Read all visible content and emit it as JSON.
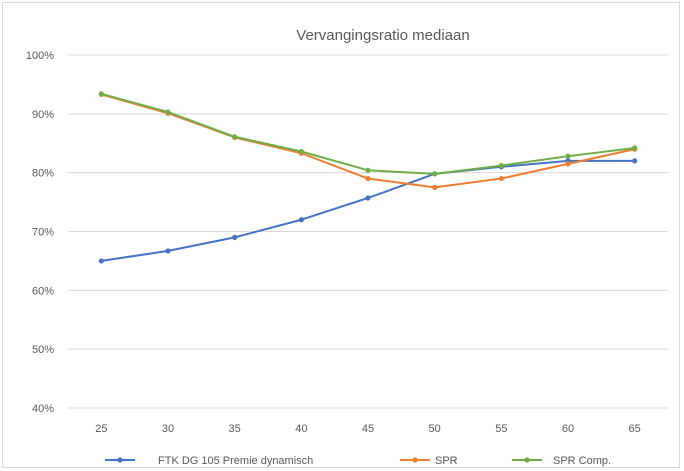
{
  "chart_data": {
    "type": "line",
    "title": "Vervangingsratio mediaan",
    "xlabel": "",
    "ylabel": "",
    "categories": [
      "25",
      "30",
      "35",
      "40",
      "45",
      "50",
      "55",
      "60",
      "65"
    ],
    "y_ticks": [
      "40%",
      "50%",
      "60%",
      "70%",
      "80%",
      "90%",
      "100%"
    ],
    "ylim": [
      40,
      100
    ],
    "grid": true,
    "legend_position": "bottom",
    "series": [
      {
        "name": "FTK DG 105 Premie dynamisch",
        "color": "#4472c4",
        "values": [
          65.0,
          66.7,
          69.0,
          72.0,
          75.7,
          79.8,
          81.0,
          82.0,
          82.0
        ]
      },
      {
        "name": "SPR",
        "color": "#ed7d31",
        "values": [
          93.3,
          90.1,
          86.0,
          83.3,
          79.0,
          77.5,
          79.0,
          81.5,
          84.0
        ]
      },
      {
        "name": "SPR Comp.",
        "color": "#70ad47",
        "values": [
          93.4,
          90.3,
          86.1,
          83.6,
          80.4,
          79.8,
          81.2,
          82.8,
          84.2
        ]
      }
    ]
  }
}
